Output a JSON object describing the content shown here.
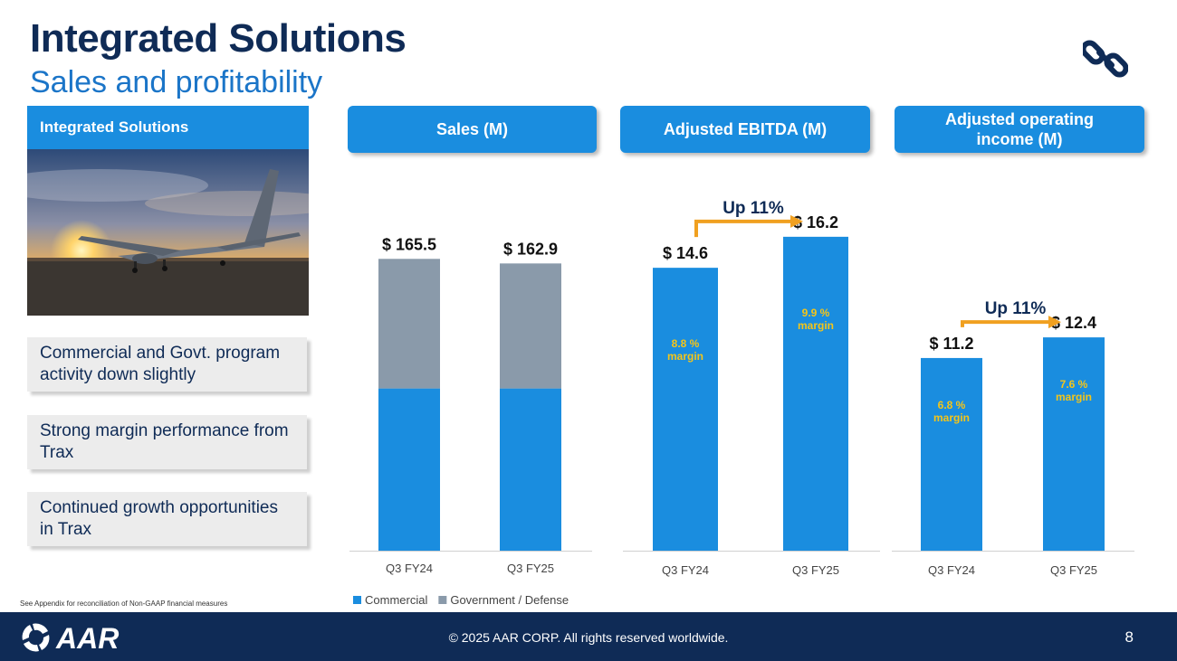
{
  "header": {
    "title": "Integrated Solutions",
    "subtitle": "Sales and profitability"
  },
  "sidebar": {
    "header": "Integrated Solutions",
    "notes": [
      "Commercial and Govt. program activity down slightly",
      "Strong margin performance from Trax",
      "Continued growth opportunities in Trax"
    ]
  },
  "colors": {
    "navy": "#0f2b56",
    "blue": "#1a8ddf",
    "gray_bar": "#8a9aaa",
    "orange": "#f0a020",
    "margin_text": "#f5c518"
  },
  "chart_data": [
    {
      "type": "bar",
      "title": "Sales (M)",
      "categories": [
        "Q3 FY24",
        "Q3 FY25"
      ],
      "stacked": true,
      "series": [
        {
          "name": "Commercial",
          "values": [
            92.0,
            92.0
          ]
        },
        {
          "name": "Government / Defense",
          "values": [
            73.5,
            70.9
          ]
        }
      ],
      "totals": [
        165.5,
        162.9
      ],
      "total_labels": [
        "$ 165.5",
        "$ 162.9"
      ],
      "ylim": [
        0,
        200
      ],
      "legend": "bottom"
    },
    {
      "type": "bar",
      "title": "Adjusted EBITDA (M)",
      "categories": [
        "Q3 FY24",
        "Q3 FY25"
      ],
      "values": [
        14.6,
        16.2
      ],
      "value_labels": [
        "$ 14.6",
        "$ 16.2"
      ],
      "margins": [
        "8.8 %",
        "9.9 %"
      ],
      "margin_suffix": "margin",
      "growth_label": "Up 11%",
      "ylim": [
        0,
        18.2
      ]
    },
    {
      "type": "bar",
      "title": "Adjusted operating income (M)",
      "categories": [
        "Q3 FY24",
        "Q3 FY25"
      ],
      "values": [
        11.2,
        12.4
      ],
      "value_labels": [
        "$ 11.2",
        "$ 12.4"
      ],
      "margins": [
        "6.8 %",
        "7.6 %"
      ],
      "margin_suffix": "margin",
      "growth_label": "Up 11%",
      "ylim": [
        0,
        20.5
      ]
    }
  ],
  "footnote": "See Appendix for reconciliation of Non-GAAP financial measures",
  "footer": {
    "logo_text": "AAR",
    "copyright": "© 2025 AAR CORP. All rights reserved worldwide.",
    "page_number": "8"
  },
  "icons": {
    "header_icon": "chain-link-icon",
    "logo_icon": "aar-logo"
  }
}
